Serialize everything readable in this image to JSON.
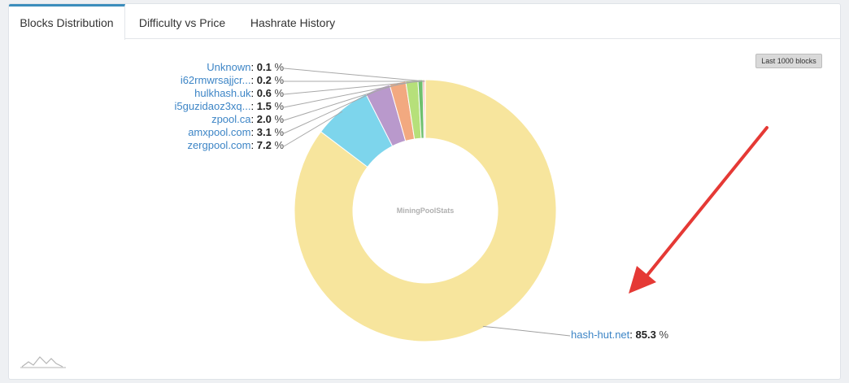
{
  "tabs": [
    {
      "label": "Blocks Distribution",
      "active": true
    },
    {
      "label": "Difficulty vs Price",
      "active": false
    },
    {
      "label": "Hashrate History",
      "active": false
    }
  ],
  "badge": "Last 1000 blocks",
  "center_text": "MiningPoolStats",
  "percent_suffix": "%",
  "colors": {
    "accent": "#3c8dbc",
    "arrow": "#e53935",
    "link": "#3d85c6"
  },
  "chart_data": {
    "type": "pie",
    "donut": true,
    "slices": [
      {
        "name": "hash-hut.net",
        "value": 85.3,
        "color": "#f7e59d"
      },
      {
        "name": "zergpool.com",
        "value": 7.2,
        "color": "#7dd5ec"
      },
      {
        "name": "amxpool.com",
        "value": 3.1,
        "color": "#b999cc"
      },
      {
        "name": "zpool.ca",
        "value": 2.0,
        "color": "#f2a980"
      },
      {
        "name": "i5guzidaoz3xq...",
        "value": 1.5,
        "color": "#b6e07a"
      },
      {
        "name": "hulkhash.uk",
        "value": 0.6,
        "color": "#6fc06e"
      },
      {
        "name": "i62rmwrsajjcr...",
        "value": 0.2,
        "color": "#f0908a"
      },
      {
        "name": "Unknown",
        "value": 0.1,
        "color": "#8fa6d8"
      }
    ]
  }
}
